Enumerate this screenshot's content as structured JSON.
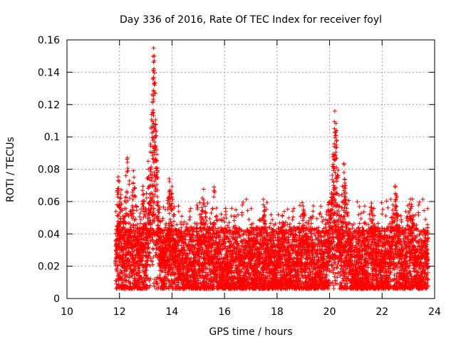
{
  "chart_data": {
    "type": "scatter",
    "title": "Day 336 of 2016, Rate Of TEC Index for receiver foyl",
    "xlabel": "GPS time / hours",
    "ylabel": "ROTI / TECUs",
    "xlim": [
      10,
      24
    ],
    "ylim": [
      0,
      0.16
    ],
    "xticks": [
      10,
      12,
      14,
      16,
      18,
      20,
      22,
      24
    ],
    "xtick_labels": [
      "10",
      "12",
      "14",
      "16",
      "18",
      "20",
      "22",
      "24"
    ],
    "yticks": [
      0,
      0.02,
      0.04,
      0.06,
      0.08,
      0.1,
      0.12,
      0.14,
      0.16
    ],
    "ytick_labels": [
      "0",
      "0.02",
      "0.04",
      "0.06",
      "0.08",
      "0.1",
      "0.12",
      "0.14",
      "0.16"
    ],
    "grid": true,
    "marker": "+",
    "color": "#ff0000",
    "x_range_data": [
      11.85,
      23.75
    ],
    "baseline_roti_typical": 0.02,
    "baseline_roti_upper": 0.04,
    "spikes": [
      {
        "x": 11.95,
        "y": 0.073
      },
      {
        "x": 12.05,
        "y": 0.062
      },
      {
        "x": 12.3,
        "y": 0.087
      },
      {
        "x": 12.55,
        "y": 0.075
      },
      {
        "x": 12.9,
        "y": 0.064
      },
      {
        "x": 13.1,
        "y": 0.08
      },
      {
        "x": 13.3,
        "y": 0.155
      },
      {
        "x": 13.32,
        "y": 0.147
      },
      {
        "x": 13.28,
        "y": 0.141
      },
      {
        "x": 13.3,
        "y": 0.122
      },
      {
        "x": 13.35,
        "y": 0.1
      },
      {
        "x": 13.4,
        "y": 0.085
      },
      {
        "x": 13.9,
        "y": 0.066
      },
      {
        "x": 14.0,
        "y": 0.065
      },
      {
        "x": 15.2,
        "y": 0.061
      },
      {
        "x": 15.6,
        "y": 0.069
      },
      {
        "x": 17.5,
        "y": 0.054
      },
      {
        "x": 18.2,
        "y": 0.047
      },
      {
        "x": 19.0,
        "y": 0.051
      },
      {
        "x": 19.95,
        "y": 0.058
      },
      {
        "x": 20.2,
        "y": 0.116
      },
      {
        "x": 20.25,
        "y": 0.101
      },
      {
        "x": 20.18,
        "y": 0.094
      },
      {
        "x": 20.15,
        "y": 0.072
      },
      {
        "x": 20.55,
        "y": 0.078
      },
      {
        "x": 20.6,
        "y": 0.07
      },
      {
        "x": 21.6,
        "y": 0.059
      },
      {
        "x": 22.5,
        "y": 0.069
      },
      {
        "x": 22.55,
        "y": 0.057
      },
      {
        "x": 23.1,
        "y": 0.056
      }
    ]
  }
}
